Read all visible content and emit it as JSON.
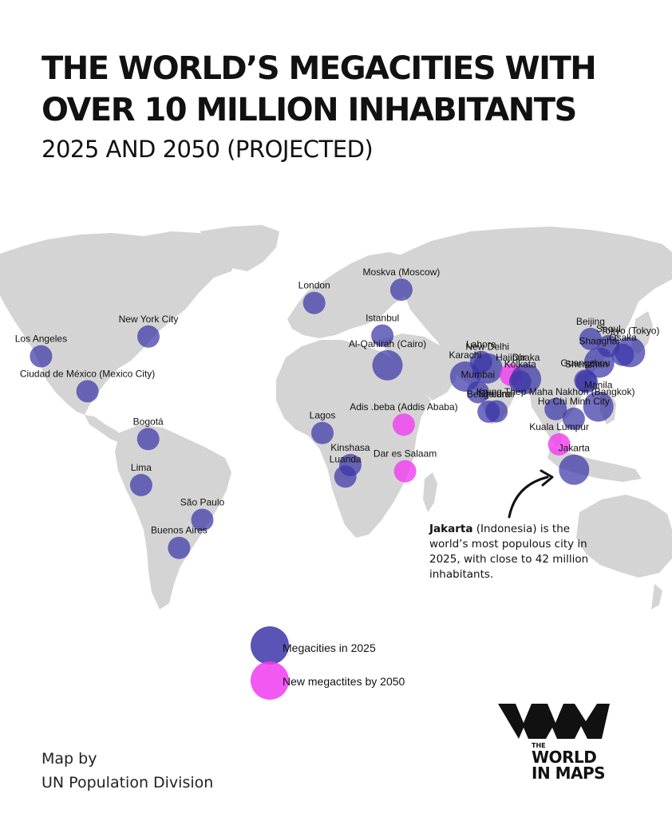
{
  "title": {
    "line1": "THE WORLD’S MEGACITIES WITH",
    "line2": "OVER 10 MILLION INHABITANTS",
    "subtitle": "2025 AND 2050 (PROJECTED)"
  },
  "colors": {
    "land": "#d4d4d4",
    "megacity_2025": "#3c36a8",
    "new_2050": "#f03cf0"
  },
  "cities": [
    {
      "name": "Los Angeles",
      "category": "2025",
      "lon": -118.2,
      "lat": 34.05
    },
    {
      "name": "New York City",
      "category": "2025",
      "lon": -74.0,
      "lat": 40.7
    },
    {
      "name": "Ciudad de México (Mexico City)",
      "category": "2025",
      "lon": -99.1,
      "lat": 19.4
    },
    {
      "name": "Bogotá",
      "category": "2025",
      "lon": -74.1,
      "lat": 4.7
    },
    {
      "name": "Lima",
      "category": "2025",
      "lon": -77.0,
      "lat": -12.0
    },
    {
      "name": "São Paulo",
      "category": "2025",
      "lon": -46.6,
      "lat": -23.5
    },
    {
      "name": "Buenos Aires",
      "category": "2025",
      "lon": -58.4,
      "lat": -34.6
    },
    {
      "name": "London",
      "category": "2025",
      "lon": -0.1,
      "lat": 51.5
    },
    {
      "name": "Moskva (Moscow)",
      "category": "2025",
      "lon": 37.6,
      "lat": 55.75
    },
    {
      "name": "Istanbul",
      "category": "2025",
      "lon": 29.0,
      "lat": 41.0
    },
    {
      "name": "Al-Qahirah (Cairo)",
      "category": "2025",
      "lon": 31.2,
      "lat": 30.0
    },
    {
      "name": "Lagos",
      "category": "2025",
      "lon": 3.4,
      "lat": 6.5
    },
    {
      "name": "Kinshasa",
      "category": "2025",
      "lon": 15.3,
      "lat": -4.3
    },
    {
      "name": "Luanda",
      "category": "2025",
      "lon": 13.2,
      "lat": -8.8
    },
    {
      "name": "Adis .beba (Addis Ababa)",
      "category": "2050",
      "lon": 38.7,
      "lat": 9.0
    },
    {
      "name": "Dar es Salaam",
      "category": "2050",
      "lon": 39.3,
      "lat": -6.8
    },
    {
      "name": "Lahore",
      "category": "2025",
      "lon": 74.3,
      "lat": 31.5
    },
    {
      "name": "New Delhi",
      "category": "2025",
      "lon": 77.2,
      "lat": 28.6
    },
    {
      "name": "Karachi",
      "category": "2025",
      "lon": 67.0,
      "lat": 24.9
    },
    {
      "name": "Hajipur",
      "category": "2050",
      "lon": 85.2,
      "lat": 25.7
    },
    {
      "name": "Dhaka",
      "category": "2025",
      "lon": 90.4,
      "lat": 23.8
    },
    {
      "name": "Kolkata",
      "category": "2025",
      "lon": 88.4,
      "lat": 22.6
    },
    {
      "name": "Mumbai",
      "category": "2025",
      "lon": 72.9,
      "lat": 19.1
    },
    {
      "name": "Chennai",
      "category": "2025",
      "lon": 80.3,
      "lat": 13.1
    },
    {
      "name": "Bengaluru",
      "category": "2025",
      "lon": 77.6,
      "lat": 13.0
    },
    {
      "name": "Krung Thep Maha Nakhon (Bangkok)",
      "category": "2025",
      "lon": 100.5,
      "lat": 13.8
    },
    {
      "name": "Ho Chi Minh City",
      "category": "2025",
      "lon": 106.7,
      "lat": 10.8
    },
    {
      "name": "Kuala Lumpur",
      "category": "2050",
      "lon": 101.7,
      "lat": 3.1
    },
    {
      "name": "Jakarta",
      "category": "2025",
      "lon": 106.8,
      "lat": -6.2
    },
    {
      "name": "Manila",
      "category": "2025",
      "lon": 121.0,
      "lat": 14.6
    },
    {
      "name": "Beijing",
      "category": "2025",
      "lon": 116.4,
      "lat": 39.9
    },
    {
      "name": "Seoul",
      "category": "2025",
      "lon": 127.0,
      "lat": 37.6
    },
    {
      "name": "Shanghai",
      "category": "2025",
      "lon": 121.5,
      "lat": 31.2
    },
    {
      "name": "Tokyo (Tokyo)",
      "category": "2025",
      "lon": 139.7,
      "lat": 35.7
    },
    {
      "name": "Osaka",
      "category": "2025",
      "lon": 135.5,
      "lat": 34.7
    },
    {
      "name": "Guangzhou",
      "category": "2025",
      "lon": 113.3,
      "lat": 23.1
    },
    {
      "name": "Shenzhen",
      "category": "2025",
      "lon": 114.1,
      "lat": 22.5
    }
  ],
  "annotation": {
    "bold": "Jakarta",
    "text": " (Indonesia) is the world’s most populous city in 2025, with close to 42 million inhabitants."
  },
  "legend": {
    "item_2025": "Megacities in 2025",
    "item_2050": "New megactites by 2050"
  },
  "credit": {
    "line1": "Map by",
    "line2": "UN Population Division"
  },
  "logo": {
    "the": "THE",
    "line1": "WORLD",
    "line2": "IN MAPS"
  }
}
